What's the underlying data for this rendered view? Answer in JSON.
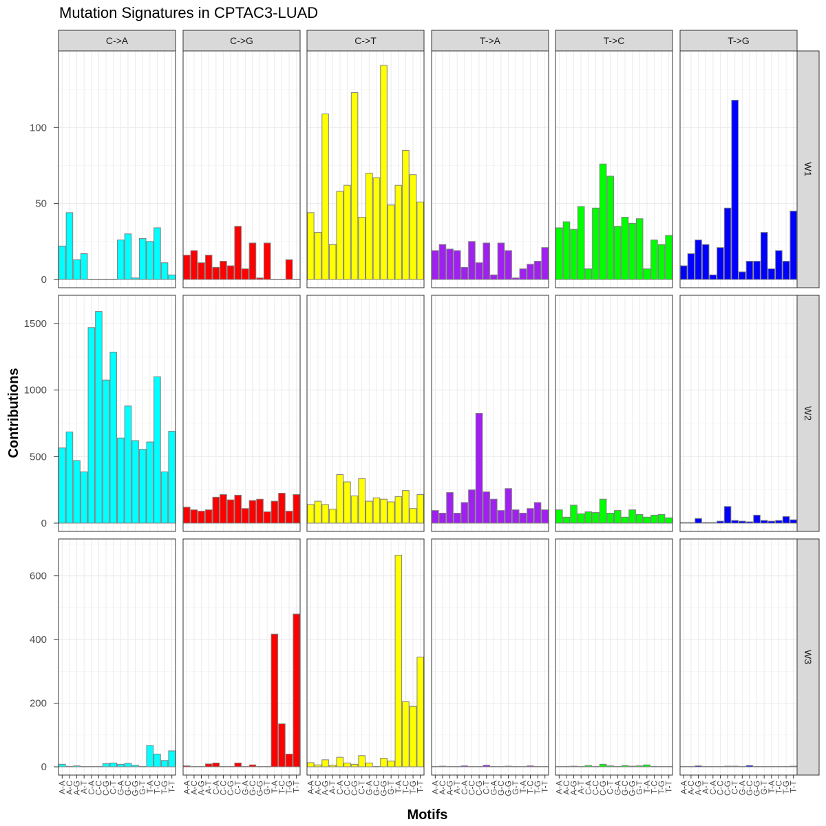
{
  "chart_data": {
    "type": "bar",
    "title": "Mutation Signatures in CPTAC3-LUAD",
    "xlabel": "Motifs",
    "ylabel": "Contributions",
    "mutation_types": [
      "C->A",
      "C->G",
      "C->T",
      "T->A",
      "T->C",
      "T->G"
    ],
    "signatures": [
      "W1",
      "W2",
      "W3"
    ],
    "motifs": [
      "A-A",
      "A-C",
      "A-G",
      "A-T",
      "C-A",
      "C-C",
      "C-G",
      "C-T",
      "G-A",
      "G-C",
      "G-G",
      "G-T",
      "T-A",
      "T-C",
      "T-G",
      "T-T"
    ],
    "colors": {
      "C->A": "#00FFFF",
      "C->G": "#FF0000",
      "C->T": "#FFFF00",
      "T->A": "#A020F0",
      "T->C": "#00FF00",
      "T->G": "#0000FF"
    },
    "bar_outline": "#808080",
    "y_ranges": {
      "W1": [
        0,
        145
      ],
      "W2": [
        0,
        1650
      ],
      "W3": [
        0,
        690
      ]
    },
    "y_ticks": {
      "W1": [
        0,
        50,
        100
      ],
      "W2": [
        0,
        500,
        1000,
        1500
      ],
      "W3": [
        0,
        200,
        400,
        600
      ]
    },
    "values": {
      "W1": {
        "C->A": [
          22,
          44,
          13,
          17,
          0,
          0,
          0,
          0,
          26,
          30,
          1,
          27,
          25,
          34,
          11,
          3
        ],
        "C->G": [
          16,
          19,
          11,
          16,
          8,
          12,
          9,
          35,
          7,
          24,
          1,
          24,
          0,
          0,
          13,
          0
        ],
        "C->T": [
          44,
          31,
          109,
          23,
          58,
          62,
          123,
          41,
          70,
          67,
          141,
          49,
          62,
          85,
          69,
          51
        ],
        "T->A": [
          19,
          23,
          20,
          19,
          8,
          25,
          11,
          24,
          3,
          24,
          19,
          1,
          7,
          10,
          12,
          21
        ],
        "T->C": [
          34,
          38,
          33,
          48,
          7,
          47,
          76,
          68,
          35,
          41,
          37,
          40,
          7,
          26,
          23,
          29
        ],
        "T->G": [
          9,
          17,
          26,
          23,
          3,
          21,
          47,
          118,
          5,
          12,
          12,
          31,
          7,
          19,
          12,
          45
        ]
      },
      "W2": {
        "C->A": [
          565,
          685,
          470,
          385,
          1470,
          1590,
          1075,
          1285,
          640,
          880,
          620,
          555,
          610,
          1100,
          385,
          690
        ],
        "C->G": [
          120,
          100,
          90,
          100,
          195,
          215,
          175,
          210,
          110,
          170,
          180,
          85,
          165,
          225,
          90,
          215
        ],
        "C->T": [
          140,
          165,
          140,
          105,
          365,
          310,
          205,
          335,
          165,
          190,
          180,
          160,
          200,
          245,
          110,
          215
        ],
        "T->A": [
          95,
          75,
          230,
          75,
          155,
          250,
          825,
          235,
          180,
          95,
          260,
          100,
          75,
          110,
          155,
          100
        ],
        "T->C": [
          100,
          45,
          135,
          70,
          85,
          80,
          180,
          75,
          95,
          45,
          100,
          65,
          45,
          60,
          65,
          40
        ],
        "T->G": [
          5,
          5,
          35,
          5,
          5,
          15,
          125,
          20,
          15,
          10,
          60,
          20,
          15,
          20,
          50,
          25
        ]
      },
      "W3": {
        "C->A": [
          8,
          1,
          3,
          1,
          1,
          1,
          10,
          12,
          8,
          11,
          5,
          1,
          67,
          40,
          20,
          50
        ],
        "C->G": [
          3,
          1,
          1,
          9,
          12,
          1,
          1,
          12,
          1,
          6,
          1,
          1,
          417,
          135,
          40,
          480
        ],
        "C->T": [
          13,
          6,
          22,
          5,
          30,
          12,
          8,
          35,
          12,
          1,
          27,
          18,
          665,
          205,
          190,
          345
        ],
        "T->A": [
          1,
          2,
          1,
          1,
          3,
          1,
          1,
          5,
          1,
          1,
          2,
          1,
          1,
          3,
          1,
          1
        ],
        "T->C": [
          1,
          1,
          2,
          1,
          4,
          1,
          8,
          3,
          1,
          4,
          2,
          3,
          6,
          1,
          1,
          1
        ],
        "T->G": [
          1,
          1,
          3,
          1,
          1,
          1,
          2,
          2,
          1,
          4,
          1,
          1,
          1,
          1,
          1,
          2
        ]
      }
    }
  }
}
